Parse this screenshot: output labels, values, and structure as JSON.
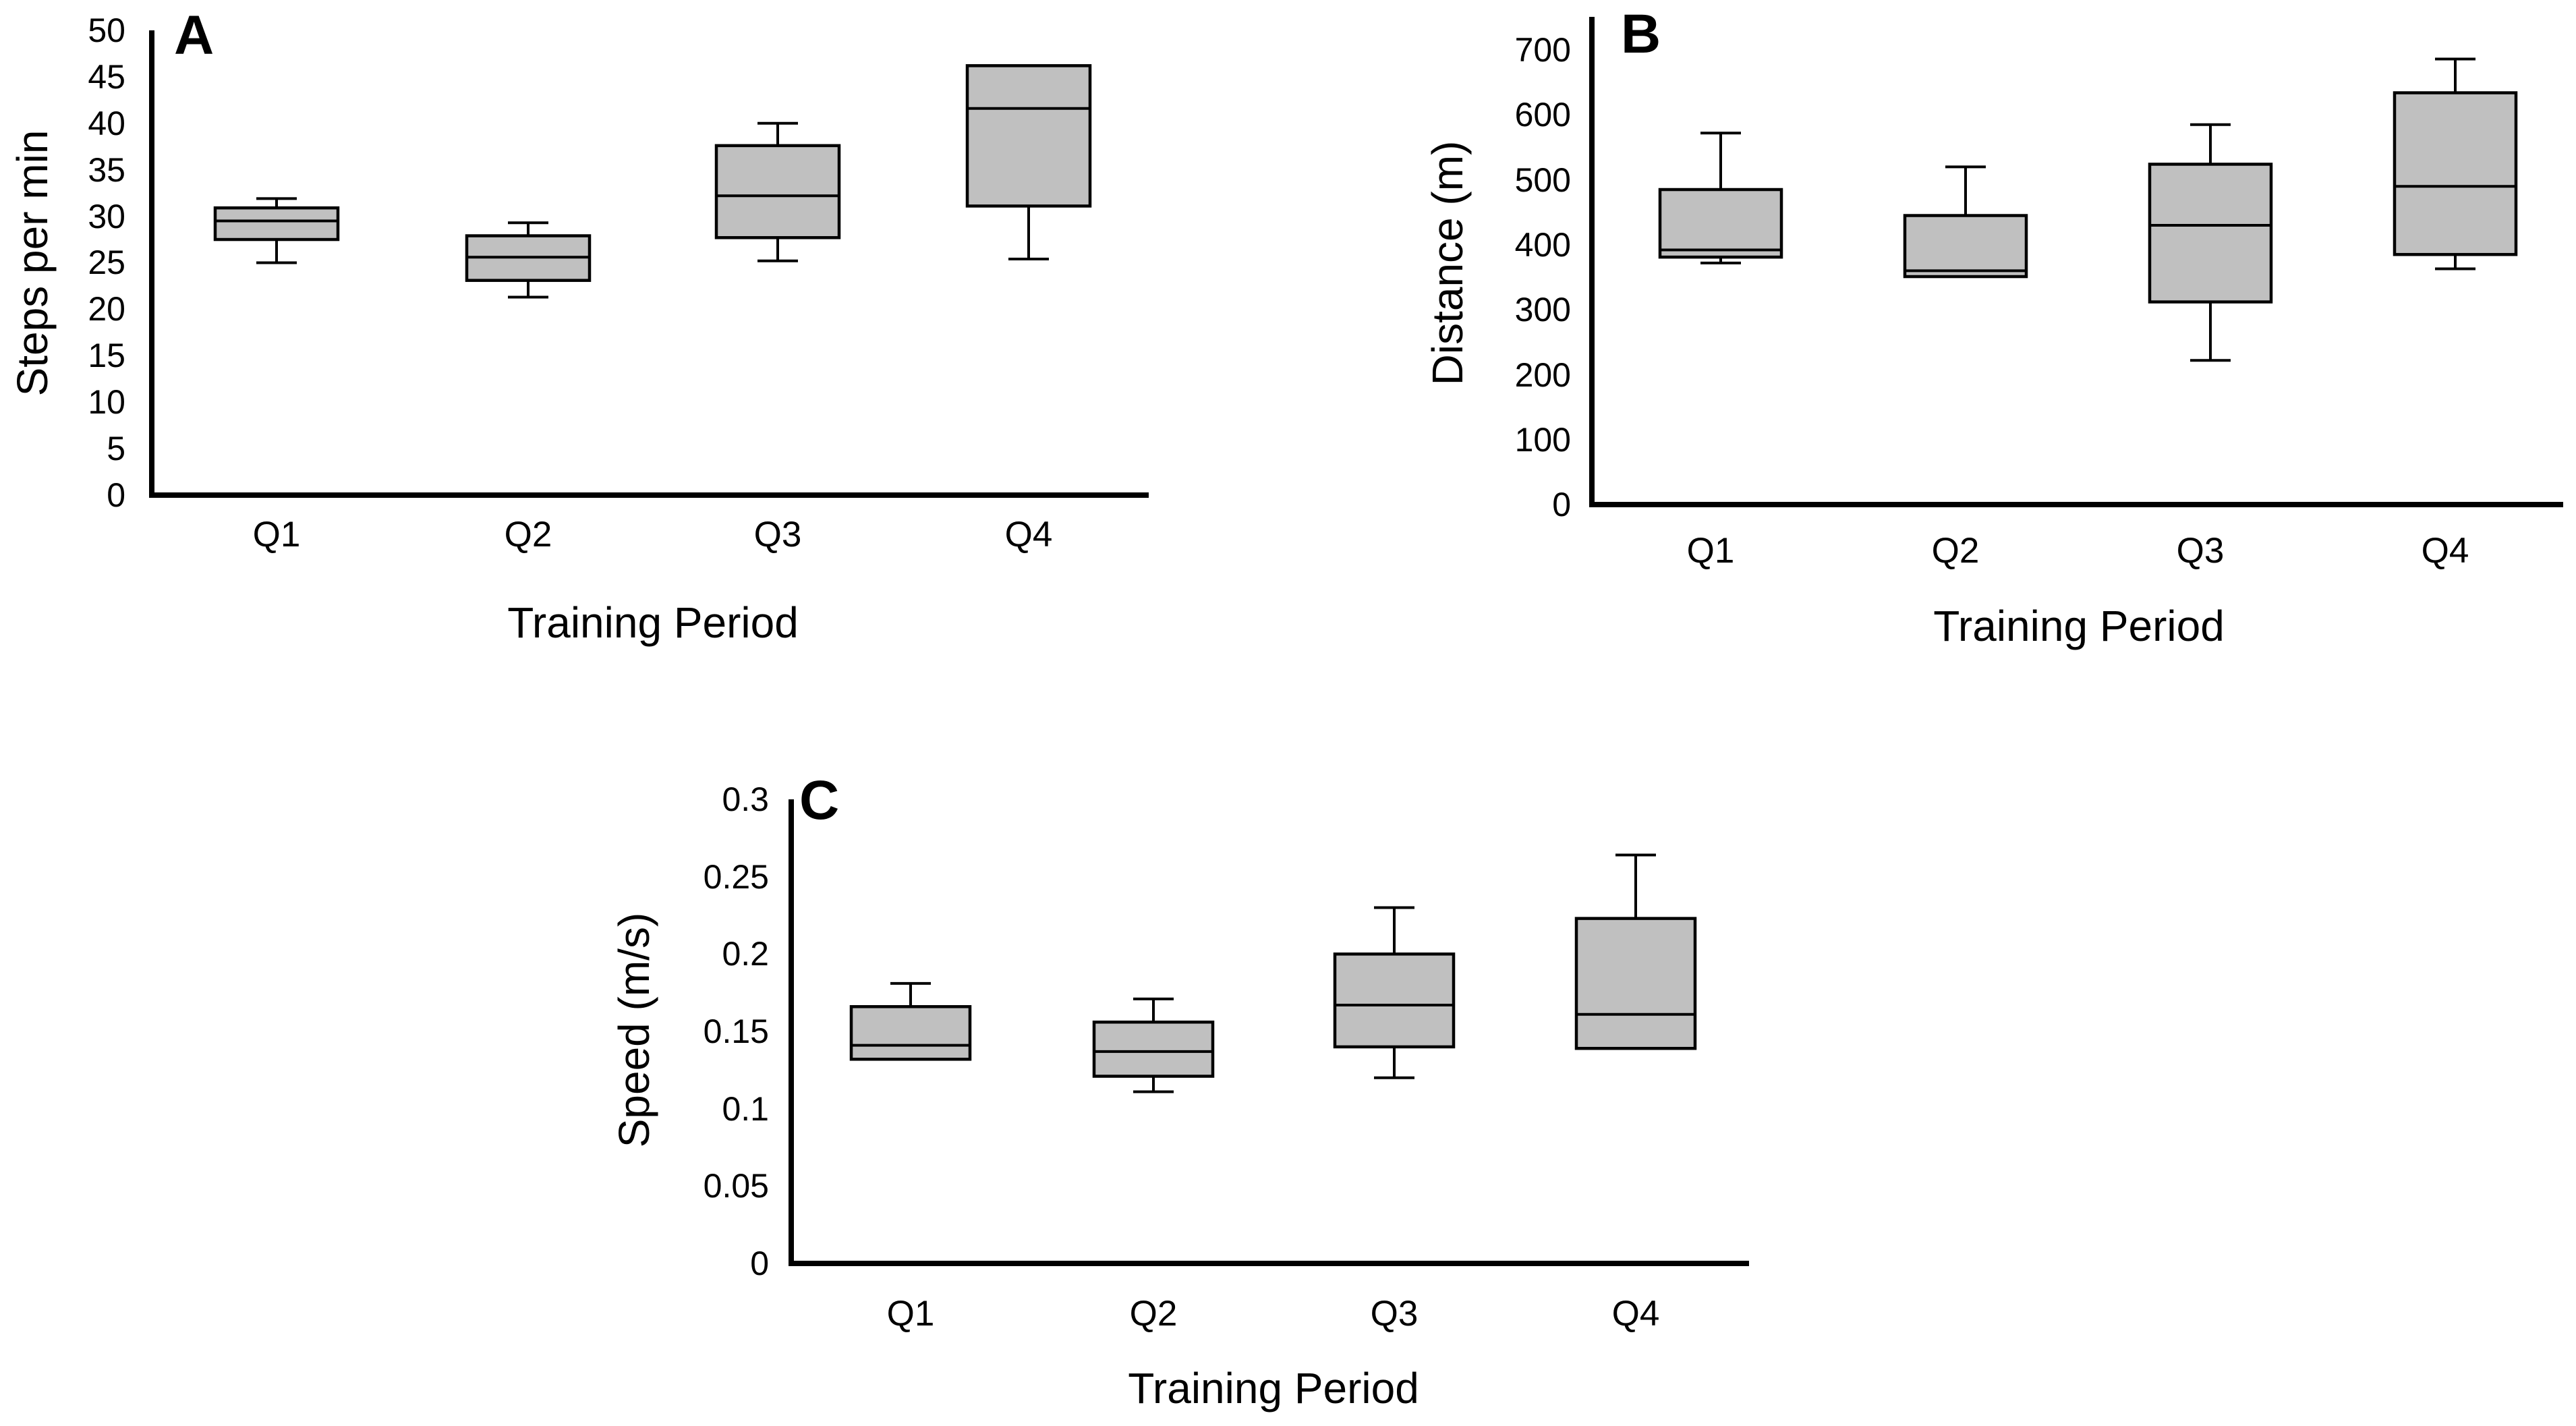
{
  "colors": {
    "box_fill": "#c0c0c0",
    "stroke": "#000000",
    "background": "#ffffff"
  },
  "chart_data": [
    {
      "id": "A",
      "type": "boxplot",
      "panel_label": "A",
      "xlabel": "Training Period",
      "ylabel": "Steps per min",
      "categories": [
        "Q1",
        "Q2",
        "Q3",
        "Q4"
      ],
      "ylim": [
        0,
        50
      ],
      "yticks": [
        0,
        5,
        10,
        15,
        20,
        25,
        30,
        35,
        40,
        45,
        50
      ],
      "ytick_labels": [
        "0",
        "5",
        "10",
        "15",
        "20",
        "25",
        "30",
        "35",
        "40",
        "45",
        "50"
      ],
      "boxes": [
        {
          "min": 25,
          "q1": 27.5,
          "median": 29.5,
          "q3": 30.9,
          "max": 31.9
        },
        {
          "min": 21.3,
          "q1": 23.1,
          "median": 25.6,
          "q3": 27.9,
          "max": 29.3
        },
        {
          "min": 25.2,
          "q1": 27.7,
          "median": 32.2,
          "q3": 37.6,
          "max": 40
        },
        {
          "min": 25.4,
          "q1": 31.1,
          "median": 41.6,
          "q3": 46.2,
          "max": 46.2
        }
      ]
    },
    {
      "id": "B",
      "type": "boxplot",
      "panel_label": "B",
      "xlabel": "Training Period",
      "ylabel": "Distance (m)",
      "categories": [
        "Q1",
        "Q2",
        "Q3",
        "Q4"
      ],
      "ylim": [
        0,
        700
      ],
      "yticks": [
        0,
        100,
        200,
        300,
        400,
        500,
        600,
        700
      ],
      "ytick_labels": [
        "0",
        "100",
        "200",
        "300",
        "400",
        "500",
        "600",
        "700"
      ],
      "boxes": [
        {
          "min": 372,
          "q1": 381,
          "median": 392,
          "q3": 485,
          "max": 572
        },
        {
          "min": 351,
          "q1": 351,
          "median": 360,
          "q3": 445,
          "max": 520
        },
        {
          "min": 222,
          "q1": 312,
          "median": 430,
          "q3": 524,
          "max": 585
        },
        {
          "min": 363,
          "q1": 385,
          "median": 490,
          "q3": 634,
          "max": 686
        }
      ]
    },
    {
      "id": "C",
      "type": "boxplot",
      "panel_label": "C",
      "xlabel": "Training Period",
      "ylabel": "Speed (m/s)",
      "categories": [
        "Q1",
        "Q2",
        "Q3",
        "Q4"
      ],
      "ylim": [
        0,
        0.3
      ],
      "yticks": [
        0,
        0.05,
        0.1,
        0.15,
        0.2,
        0.25,
        0.3
      ],
      "ytick_labels": [
        "0",
        "0.05",
        "0.1",
        "0.15",
        "0.2",
        "0.25",
        "0.3"
      ],
      "boxes": [
        {
          "min": 0.132,
          "q1": 0.132,
          "median": 0.141,
          "q3": 0.166,
          "max": 0.181
        },
        {
          "min": 0.111,
          "q1": 0.121,
          "median": 0.137,
          "q3": 0.156,
          "max": 0.171
        },
        {
          "min": 0.12,
          "q1": 0.14,
          "median": 0.167,
          "q3": 0.2,
          "max": 0.23
        },
        {
          "min": 0.139,
          "q1": 0.139,
          "median": 0.161,
          "q3": 0.223,
          "max": 0.264
        }
      ]
    }
  ]
}
